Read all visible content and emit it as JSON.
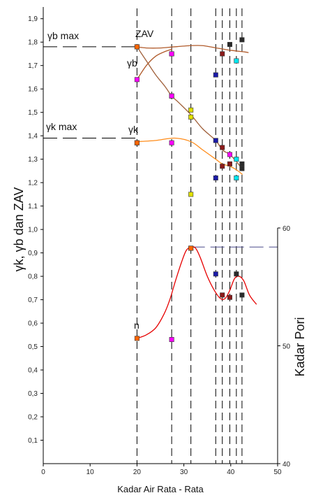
{
  "chart_data": {
    "type": "scatter",
    "xlabel": "Kadar Air Rata - Rata",
    "ylabel": "γk, γb dan ZAV",
    "y2label": "Kadar Pori",
    "xlim": [
      0,
      50
    ],
    "ylim": [
      0,
      1.95
    ],
    "y2lim": [
      40,
      60
    ],
    "x_ticks": [
      "0",
      "10",
      "20",
      "30",
      "40",
      "50"
    ],
    "y_ticks": [
      "0,1",
      "0,2",
      "0,3",
      "0,4",
      "0,5",
      "0,6",
      "0,7",
      "0,8",
      "0,9",
      "1,0",
      "1,1",
      "1,2",
      "1,3",
      "1,4",
      "1,5",
      "1,6",
      "1,7",
      "1,8",
      "1,9"
    ],
    "y2_ticks": [
      "40",
      "50",
      "60"
    ],
    "grid": false,
    "vertical_dashed_x": [
      20,
      27.4,
      31.5,
      36.8,
      38.2,
      39.8,
      41.2,
      42.4
    ],
    "annotations": {
      "yb_max": "γb max",
      "zav": "ZAV",
      "yb": "γb",
      "yk_max": "γk max",
      "yk": "γk",
      "n": "n"
    },
    "reference_lines": [
      {
        "y": 1.78,
        "x_end": 20
      },
      {
        "y": 1.39,
        "x_end": 20
      },
      {
        "y": 0.925,
        "x_start": 31.5
      }
    ],
    "series": [
      {
        "color": "#e0e000",
        "points": [
          [
            20,
            1.78
          ],
          [
            27.4,
            1.75
          ],
          [
            27.4,
            1.57
          ],
          [
            31.5,
            1.51
          ],
          [
            31.5,
            1.48
          ],
          [
            31.5,
            1.15
          ],
          [
            31.5,
            0.92
          ]
        ]
      },
      {
        "color": "#ff00ff",
        "points": [
          [
            20,
            1.64
          ],
          [
            20,
            1.37
          ],
          [
            27.4,
            1.75
          ],
          [
            27.4,
            1.37
          ],
          [
            27.4,
            1.57
          ],
          [
            27.4,
            0.53
          ],
          [
            39.8,
            1.32
          ]
        ]
      },
      {
        "color": "#1a1aa8",
        "points": [
          [
            36.8,
            1.66
          ],
          [
            36.8,
            1.38
          ],
          [
            36.8,
            1.22
          ],
          [
            36.8,
            0.81
          ]
        ]
      },
      {
        "color": "#8b1a1a",
        "points": [
          [
            38.2,
            1.75
          ],
          [
            38.2,
            1.35
          ],
          [
            38.2,
            1.27
          ],
          [
            38.2,
            0.72
          ],
          [
            39.8,
            1.28
          ],
          [
            39.8,
            0.71
          ]
        ]
      },
      {
        "color": "#2a2a2a",
        "points": [
          [
            39.8,
            1.79
          ],
          [
            42.4,
            1.81
          ],
          [
            42.4,
            1.28
          ],
          [
            42.4,
            1.26
          ],
          [
            42.4,
            0.72
          ],
          [
            41.2,
            0.81
          ]
        ]
      },
      {
        "color": "#00e5ee",
        "points": [
          [
            41.2,
            1.72
          ],
          [
            41.2,
            1.3
          ],
          [
            41.2,
            1.22
          ]
        ]
      },
      {
        "color": "#ff6600",
        "points": [
          [
            20,
            1.78
          ],
          [
            20,
            1.37
          ],
          [
            20,
            0.535
          ],
          [
            31.5,
            0.92
          ]
        ]
      }
    ],
    "curves": [
      {
        "color": "#b05a2a",
        "points": [
          [
            20,
            1.78
          ],
          [
            22,
            1.775
          ],
          [
            25,
            1.775
          ],
          [
            28,
            1.78
          ],
          [
            31.5,
            1.785
          ],
          [
            34,
            1.785
          ],
          [
            37,
            1.775
          ],
          [
            40,
            1.765
          ],
          [
            43,
            1.758
          ],
          [
            43.8,
            1.755
          ]
        ]
      },
      {
        "color": "#b05a2a",
        "points": [
          [
            20,
            1.64
          ],
          [
            22,
            1.7
          ],
          [
            24,
            1.74
          ],
          [
            26,
            1.76
          ],
          [
            27.5,
            1.77
          ]
        ]
      },
      {
        "color": "#a0603a",
        "points": [
          [
            20,
            1.78
          ],
          [
            22,
            1.72
          ],
          [
            24,
            1.66
          ],
          [
            26,
            1.61
          ],
          [
            27.4,
            1.57
          ],
          [
            29,
            1.54
          ],
          [
            31.5,
            1.49
          ],
          [
            34,
            1.43
          ],
          [
            36.8,
            1.38
          ],
          [
            38.2,
            1.34
          ],
          [
            39.8,
            1.32
          ],
          [
            41.2,
            1.29
          ],
          [
            42.4,
            1.26
          ]
        ]
      },
      {
        "color": "#ff8c1a",
        "points": [
          [
            20,
            1.375
          ],
          [
            24,
            1.38
          ],
          [
            28,
            1.39
          ],
          [
            31.5,
            1.375
          ],
          [
            34,
            1.34
          ],
          [
            36.8,
            1.3
          ],
          [
            38.2,
            1.28
          ],
          [
            39.8,
            1.27
          ],
          [
            41.2,
            1.255
          ],
          [
            42.5,
            1.235
          ]
        ]
      },
      {
        "color": "#e60000",
        "points": [
          [
            20,
            0.535
          ],
          [
            22,
            0.55
          ],
          [
            24,
            0.58
          ],
          [
            25.8,
            0.64
          ],
          [
            27,
            0.7
          ],
          [
            28.2,
            0.78
          ],
          [
            29.5,
            0.86
          ],
          [
            30.5,
            0.91
          ],
          [
            31.5,
            0.925
          ],
          [
            32.5,
            0.92
          ],
          [
            33.5,
            0.88
          ],
          [
            35,
            0.8
          ],
          [
            36.5,
            0.74
          ],
          [
            37.8,
            0.705
          ],
          [
            38.8,
            0.705
          ],
          [
            39.8,
            0.74
          ],
          [
            40.8,
            0.79
          ],
          [
            41.8,
            0.8
          ],
          [
            42.8,
            0.78
          ],
          [
            44,
            0.72
          ],
          [
            45.5,
            0.68
          ]
        ]
      }
    ]
  }
}
